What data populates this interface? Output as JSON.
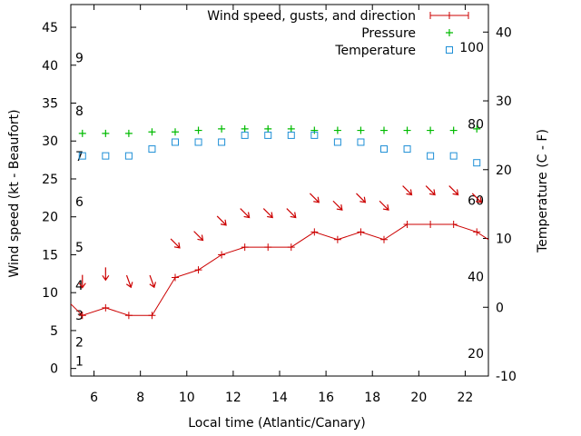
{
  "chart_data": {
    "type": "line",
    "title": "",
    "xlabel": "Local time (Atlantic/Canary)",
    "ylabel": "Wind speed (kt - Beaufort)",
    "y2label": "Temperature (C - F)",
    "xlim": [
      5,
      23
    ],
    "ylim": [
      -1,
      48
    ],
    "y2lim": [
      -10,
      44
    ],
    "x_ticks": [
      "6",
      "8",
      "10",
      "12",
      "14",
      "16",
      "18",
      "20",
      "22"
    ],
    "y_ticks": [
      "0",
      "5",
      "10",
      "15",
      "20",
      "25",
      "30",
      "35",
      "40",
      "45"
    ],
    "y2_ticks": [
      "-10",
      "0",
      "10",
      "20",
      "30",
      "40"
    ],
    "beaufort_labels": [
      "1",
      "2",
      "3",
      "4",
      "5",
      "6",
      "7",
      "8",
      "9"
    ],
    "fahrenheit_labels": [
      "20",
      "40",
      "60",
      "80",
      "100"
    ],
    "legend_position": "top-right",
    "legend": {
      "wind": "Wind speed, gusts, and direction",
      "pressure": "Pressure",
      "temperature": "Temperature"
    },
    "colors": {
      "wind": "#cc0000",
      "pressure": "#00bb00",
      "temperature": "#1e8fd6"
    },
    "series": [
      {
        "name": "Wind speed, gusts, and direction",
        "axis": "left",
        "x": [
          5,
          5.5,
          6.5,
          7.5,
          8.5,
          9.5,
          10.5,
          11.5,
          12.5,
          13.5,
          14.5,
          15.5,
          16.5,
          17.5,
          18.5,
          19.5,
          20.5,
          21.5,
          22.5,
          23
        ],
        "y": [
          8.5,
          7,
          8,
          7,
          7,
          12,
          13,
          15,
          16,
          16,
          16,
          18,
          17,
          18,
          17,
          19,
          19,
          19,
          18,
          17
        ],
        "arrow_direction_deg": [
          0,
          0,
          20,
          20,
          45,
          45,
          45,
          45,
          45,
          45,
          45,
          45,
          45,
          45,
          45,
          45,
          45,
          45
        ]
      },
      {
        "name": "Pressure",
        "axis": "left",
        "x": [
          5.5,
          6.5,
          7.5,
          8.5,
          9.5,
          10.5,
          11.5,
          12.5,
          13.5,
          14.5,
          15.5,
          16.5,
          17.5,
          18.5,
          19.5,
          20.5,
          21.5,
          22.5
        ],
        "y": [
          31,
          31,
          31,
          31.2,
          31.2,
          31.4,
          31.6,
          31.6,
          31.6,
          31.6,
          31.4,
          31.4,
          31.4,
          31.4,
          31.4,
          31.4,
          31.4,
          31.6
        ]
      },
      {
        "name": "Temperature",
        "axis": "right",
        "x": [
          5.5,
          6.5,
          7.5,
          8.5,
          9.5,
          10.5,
          11.5,
          12.5,
          13.5,
          14.5,
          15.5,
          16.5,
          17.5,
          18.5,
          19.5,
          20.5,
          21.5,
          22.5
        ],
        "y": [
          22,
          22,
          22,
          23,
          24,
          24,
          24,
          25,
          25,
          25,
          25,
          24,
          24,
          23,
          23,
          22,
          22,
          21
        ]
      }
    ]
  }
}
